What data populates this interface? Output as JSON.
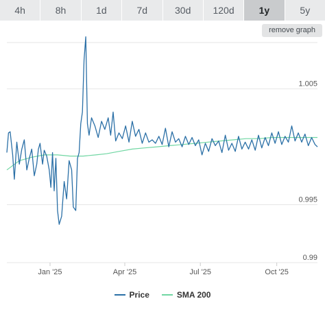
{
  "tabs": [
    {
      "label": "4h",
      "active": false
    },
    {
      "label": "8h",
      "active": false
    },
    {
      "label": "1d",
      "active": false
    },
    {
      "label": "7d",
      "active": false
    },
    {
      "label": "30d",
      "active": false
    },
    {
      "label": "120d",
      "active": false
    },
    {
      "label": "1y",
      "active": true
    },
    {
      "label": "5y",
      "active": false
    }
  ],
  "remove_graph_label": "remove graph",
  "colors": {
    "price": "#2a6fa6",
    "sma": "#6fd6a2",
    "grid": "#e6e6e6",
    "axis_text": "#555555"
  },
  "chart_data": {
    "type": "line",
    "title": "",
    "xlabel": "",
    "ylabel": "",
    "ylim": [
      0.99,
      1.009
    ],
    "yticks": [
      0.99,
      0.995,
      1.005
    ],
    "ytick_labels": [
      "0.99",
      "0.995",
      "1.005"
    ],
    "xlim": [
      "2024-11-10",
      "2025-11-19"
    ],
    "xticks": [
      {
        "date": "2025-01-01",
        "label": "Jan '25"
      },
      {
        "date": "2025-04-01",
        "label": "Apr '25"
      },
      {
        "date": "2025-07-01",
        "label": "Jul '25"
      },
      {
        "date": "2025-10-01",
        "label": "Oct '25"
      }
    ],
    "legend": {
      "position": "bottom"
    },
    "series": [
      {
        "name": "Price",
        "x": [
          "2024-11-10",
          "2024-11-12",
          "2024-11-14",
          "2024-11-17",
          "2024-11-19",
          "2024-11-22",
          "2024-11-25",
          "2024-11-28",
          "2024-12-01",
          "2024-12-04",
          "2024-12-07",
          "2024-12-10",
          "2024-12-13",
          "2024-12-16",
          "2024-12-18",
          "2024-12-20",
          "2024-12-23",
          "2024-12-25",
          "2024-12-28",
          "2024-12-31",
          "2025-01-02",
          "2025-01-04",
          "2025-01-06",
          "2025-01-08",
          "2025-01-10",
          "2025-01-12",
          "2025-01-15",
          "2025-01-18",
          "2025-01-21",
          "2025-01-24",
          "2025-01-27",
          "2025-01-29",
          "2025-02-01",
          "2025-02-03",
          "2025-02-05",
          "2025-02-07",
          "2025-02-09",
          "2025-02-11",
          "2025-02-13",
          "2025-02-15",
          "2025-02-17",
          "2025-02-20",
          "2025-02-24",
          "2025-02-28",
          "2025-03-04",
          "2025-03-08",
          "2025-03-12",
          "2025-03-15",
          "2025-03-18",
          "2025-03-21",
          "2025-03-25",
          "2025-03-29",
          "2025-04-02",
          "2025-04-06",
          "2025-04-10",
          "2025-04-14",
          "2025-04-18",
          "2025-04-22",
          "2025-04-26",
          "2025-04-30",
          "2025-05-04",
          "2025-05-08",
          "2025-05-12",
          "2025-05-16",
          "2025-05-20",
          "2025-05-24",
          "2025-05-28",
          "2025-06-01",
          "2025-06-05",
          "2025-06-09",
          "2025-06-13",
          "2025-06-17",
          "2025-06-21",
          "2025-06-25",
          "2025-06-29",
          "2025-07-03",
          "2025-07-07",
          "2025-07-11",
          "2025-07-15",
          "2025-07-19",
          "2025-07-23",
          "2025-07-27",
          "2025-07-31",
          "2025-08-04",
          "2025-08-08",
          "2025-08-12",
          "2025-08-16",
          "2025-08-20",
          "2025-08-24",
          "2025-08-28",
          "2025-09-01",
          "2025-09-05",
          "2025-09-09",
          "2025-09-13",
          "2025-09-17",
          "2025-09-21",
          "2025-09-25",
          "2025-09-29",
          "2025-10-03",
          "2025-10-07",
          "2025-10-11",
          "2025-10-15",
          "2025-10-19",
          "2025-10-23",
          "2025-10-27",
          "2025-10-31",
          "2025-11-04",
          "2025-11-08",
          "2025-11-12",
          "2025-11-16",
          "2025-11-19"
        ],
        "values": [
          0.9995,
          1.0012,
          1.0013,
          0.9993,
          0.9972,
          1.0004,
          0.9985,
          0.9998,
          1.0006,
          0.998,
          0.999,
          0.9998,
          0.9975,
          0.9985,
          0.9998,
          1.0003,
          0.9985,
          0.9997,
          0.9992,
          0.998,
          0.9965,
          0.9995,
          0.9962,
          0.999,
          0.9945,
          0.9933,
          0.994,
          0.997,
          0.9955,
          0.9988,
          0.998,
          0.9948,
          0.9945,
          0.999,
          0.9995,
          1.002,
          1.003,
          1.0075,
          1.0095,
          1.002,
          1.001,
          1.0025,
          1.0018,
          1.0008,
          1.0022,
          1.0015,
          1.0025,
          1.001,
          1.003,
          1.0005,
          1.0012,
          1.0007,
          1.0018,
          1.0004,
          1.0022,
          1.0009,
          1.0015,
          1.0003,
          1.0012,
          1.0004,
          1.0006,
          1.0003,
          1.0009,
          1.0002,
          1.0016,
          1.0,
          1.0013,
          1.0004,
          1.0007,
          1.0,
          1.0009,
          1.0002,
          1.0008,
          1.0001,
          1.0006,
          0.9993,
          1.0003,
          0.9996,
          1.0007,
          1.0001,
          1.0005,
          0.9995,
          1.001,
          0.9997,
          1.0003,
          0.9996,
          1.0009,
          0.9998,
          1.0004,
          0.9998,
          1.0006,
          0.9997,
          1.001,
          0.9999,
          1.0008,
          1.0001,
          1.0012,
          1.0003,
          1.0013,
          1.0002,
          1.0009,
          1.0004,
          1.0018,
          1.0005,
          1.0012,
          1.0004,
          1.0011,
          1.0001,
          1.0008,
          1.0002,
          1.0
        ]
      },
      {
        "name": "SMA 200",
        "x": [
          "2024-11-10",
          "2024-11-25",
          "2024-12-10",
          "2024-12-25",
          "2025-01-10",
          "2025-01-25",
          "2025-02-10",
          "2025-02-25",
          "2025-03-10",
          "2025-03-25",
          "2025-04-10",
          "2025-04-25",
          "2025-05-10",
          "2025-05-25",
          "2025-06-10",
          "2025-06-25",
          "2025-07-10",
          "2025-07-25",
          "2025-08-10",
          "2025-08-25",
          "2025-09-10",
          "2025-09-25",
          "2025-10-10",
          "2025-10-25",
          "2025-11-10",
          "2025-11-19"
        ],
        "values": [
          0.998,
          0.9988,
          0.9991,
          0.9993,
          0.9993,
          0.9992,
          0.9992,
          0.9993,
          0.9994,
          0.9996,
          0.9998,
          0.9999,
          1.0,
          1.0001,
          1.0002,
          1.0003,
          1.0004,
          1.0005,
          1.0006,
          1.0007,
          1.0007,
          1.0008,
          1.0008,
          1.0008,
          1.0008,
          1.0008
        ]
      }
    ]
  }
}
